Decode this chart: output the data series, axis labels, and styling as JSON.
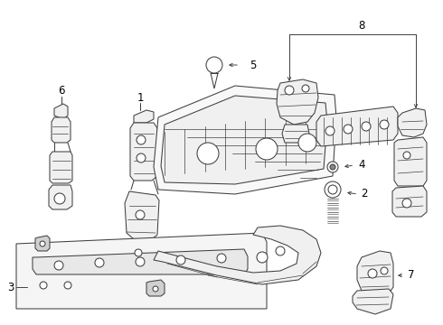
{
  "bg_color": "#ffffff",
  "line_color": "#404040",
  "label_color": "#000000",
  "fig_width": 4.9,
  "fig_height": 3.6,
  "dpi": 100,
  "lw": 0.75
}
